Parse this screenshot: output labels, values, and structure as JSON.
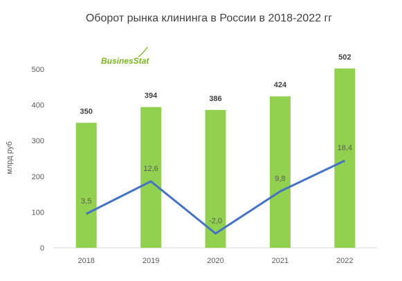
{
  "chart_data": {
    "type": "bar",
    "title": "Оборот рынка клининга в России в 2018-2022 гг",
    "ylabel": "млрд руб",
    "xlabel": "",
    "categories": [
      "2018",
      "2019",
      "2020",
      "2021",
      "2022"
    ],
    "ylim": [
      0,
      500
    ],
    "yticks": [
      "0",
      "100",
      "200",
      "300",
      "400",
      "500"
    ],
    "grid": false,
    "series": [
      {
        "type": "bar",
        "values": [
          350,
          394,
          386,
          424,
          502
        ],
        "labels": [
          "350",
          "394",
          "386",
          "424",
          "502"
        ],
        "color": "#92d050"
      },
      {
        "type": "line",
        "values": [
          3.5,
          12.6,
          -2.0,
          9.8,
          18.4
        ],
        "labels": [
          "3,5",
          "12,6",
          "-2,0",
          "9,8",
          "18,4"
        ],
        "color": "#4472c4"
      }
    ]
  },
  "logo": {
    "text": "BusinesStat",
    "color": "#7ab51d"
  }
}
